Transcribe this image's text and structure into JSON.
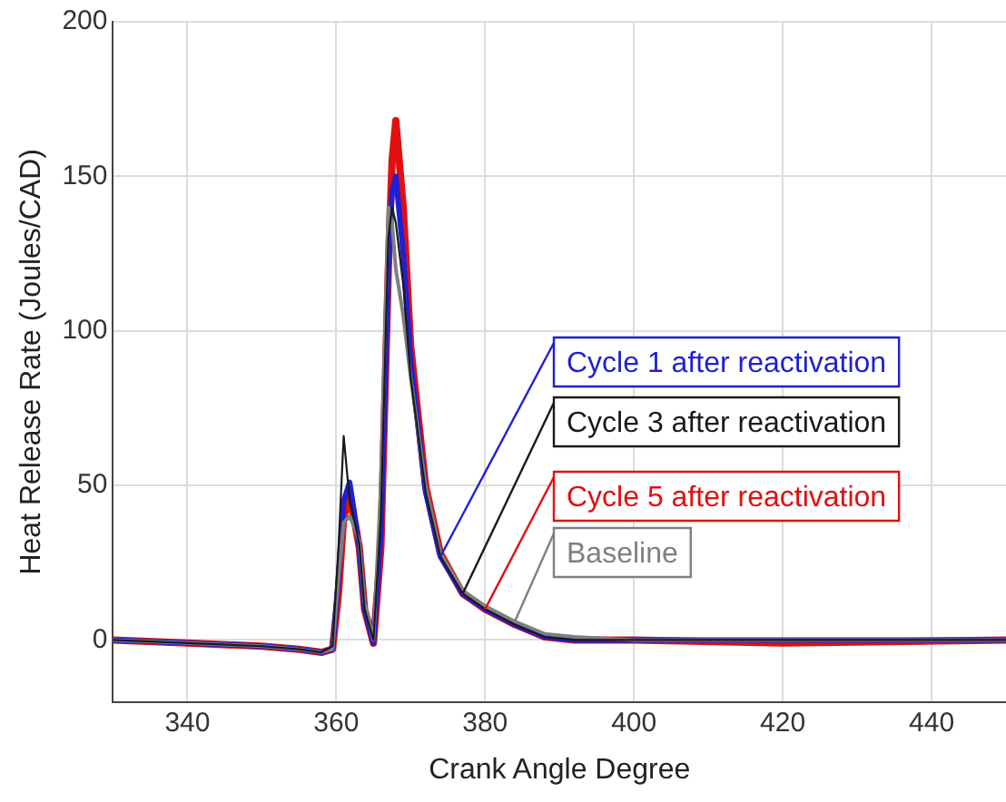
{
  "chart_data": {
    "type": "line",
    "xlabel": "Crank Angle Degree",
    "ylabel": "Heat Release Rate (Joules/CAD)",
    "x": [
      330,
      340,
      350,
      355,
      358,
      359.5,
      360.3,
      361,
      361.8,
      362.5,
      363.1,
      363.8,
      365,
      366,
      367,
      367.5,
      368,
      369,
      370,
      372,
      374,
      377,
      380,
      384,
      388,
      392,
      400,
      420,
      450
    ],
    "series": [
      {
        "name": "Cycle 1 after reactivation",
        "color": "#1f1fd6",
        "values": [
          0,
          -1,
          -2,
          -3,
          -4,
          -3,
          20,
          45,
          51,
          40,
          30,
          10,
          -1,
          35,
          120,
          145,
          150,
          125,
          90,
          48,
          27,
          15,
          10,
          5,
          1,
          0,
          0,
          0,
          0
        ]
      },
      {
        "name": "Cycle 3 after reactivation",
        "color": "#1a1a1a",
        "values": [
          0,
          -1,
          -2,
          -3,
          -4,
          -2,
          30,
          66,
          45,
          38,
          31,
          10,
          0,
          40,
          130,
          140,
          135,
          115,
          85,
          48,
          27,
          15,
          10,
          5,
          1,
          0,
          0,
          0,
          0
        ]
      },
      {
        "name": "Cycle 5 after reactivation",
        "color": "#e01010",
        "values": [
          0,
          -1,
          -2,
          -3,
          -4,
          -3,
          15,
          40,
          46,
          38,
          30,
          10,
          -1,
          30,
          120,
          155,
          168,
          140,
          95,
          50,
          28,
          15,
          10,
          5,
          1,
          0,
          0,
          -1,
          0
        ]
      },
      {
        "name": "Baseline",
        "color": "#7f7f7f",
        "values": [
          0,
          -1,
          -2,
          -3,
          -4,
          -3,
          20,
          38,
          40,
          36,
          32,
          12,
          0,
          50,
          140,
          135,
          120,
          105,
          85,
          50,
          28,
          16,
          11,
          6,
          2,
          1,
          0,
          0,
          0
        ]
      }
    ],
    "xlim": [
      330,
      450
    ],
    "xticks": [
      340,
      360,
      380,
      400,
      420,
      440
    ],
    "ylim": [
      -20,
      200
    ],
    "yticks": [
      0,
      50,
      100,
      150,
      200
    ],
    "grid": true,
    "legend": false,
    "marker": "none",
    "line_style": "solid"
  }
}
